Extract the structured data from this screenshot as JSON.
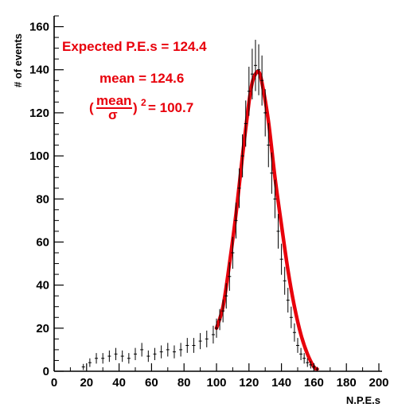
{
  "chart_data": {
    "type": "scatter",
    "title": "",
    "xlabel": "N.P.E.s",
    "ylabel": "# of events",
    "xlim": [
      0,
      200
    ],
    "ylim": [
      0,
      165
    ],
    "xticks": [
      0,
      20,
      40,
      60,
      80,
      100,
      120,
      140,
      160,
      180,
      200
    ],
    "yticks": [
      0,
      20,
      40,
      60,
      80,
      100,
      120,
      140,
      160
    ],
    "grid": false,
    "colors": {
      "data": "#000000",
      "fit": "#e8000b",
      "annotation": "#e8000b"
    },
    "annotations": {
      "expected": "Expected P.E.s = 124.4",
      "mean": "mean = 124.6",
      "ratio_numerator": "mean",
      "ratio_denominator": "σ",
      "ratio_value": "= 100.7",
      "ratio_open": "(",
      "ratio_close": ")",
      "ratio_power": "2"
    },
    "series": [
      {
        "kind": "histogram-with-errors",
        "x": [
          18,
          22,
          26,
          30,
          34,
          38,
          42,
          46,
          50,
          54,
          58,
          62,
          66,
          70,
          74,
          78,
          82,
          86,
          90,
          94,
          98,
          100,
          102,
          104,
          106,
          108,
          110,
          112,
          114,
          116,
          118,
          120,
          122,
          124,
          126,
          128,
          130,
          132,
          134,
          136,
          138,
          140,
          142,
          144,
          146,
          148,
          150,
          152,
          154,
          156,
          158,
          160,
          162
        ],
        "y": [
          2,
          4,
          6,
          6,
          7,
          8,
          7,
          6,
          8,
          10,
          7,
          8,
          9,
          10,
          9,
          10,
          12,
          12,
          14,
          15,
          17,
          20,
          24,
          28,
          35,
          44,
          55,
          70,
          85,
          100,
          115,
          130,
          138,
          142,
          140,
          135,
          120,
          105,
          92,
          80,
          65,
          52,
          42,
          33,
          25,
          18,
          12,
          8,
          6,
          4,
          3,
          2,
          1
        ]
      },
      {
        "kind": "fit",
        "name": "",
        "x": [
          100,
          104,
          108,
          112,
          116,
          120,
          122,
          124,
          126,
          128,
          132,
          136,
          140,
          144,
          148,
          152,
          156,
          160,
          162
        ],
        "y": [
          20,
          30,
          50,
          73,
          100,
          125,
          134,
          138,
          139,
          134,
          116,
          90,
          68,
          47,
          30,
          17,
          8,
          2,
          1
        ]
      }
    ]
  }
}
